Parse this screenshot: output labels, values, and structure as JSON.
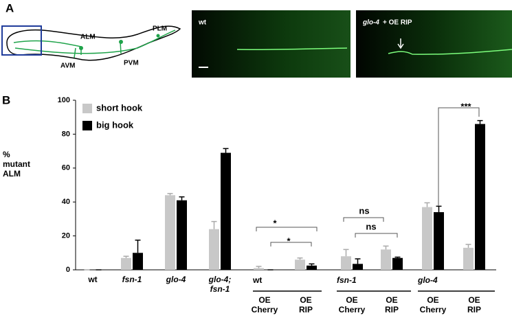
{
  "panel_a": {
    "label": "A",
    "neurons": [
      "ALM",
      "PLM",
      "AVM",
      "PVM"
    ],
    "image_1": "wt",
    "image_2_gene": "glo-4",
    "image_2_rest": "+ OE RIP"
  },
  "chart_data": {
    "type": "bar",
    "panel": "B",
    "ylabel": "% mutant ALM",
    "categories": [
      "wt",
      "fsn-1",
      "glo-4",
      "glo-4;\nfsn-1",
      "OE\nCherry",
      "OE\nRIP",
      "OE\nCherry",
      "OE\nRIP",
      "OE\nCherry",
      "OE\nRIP"
    ],
    "groups": [
      {
        "label": "wt",
        "categories": [
          4,
          5
        ]
      },
      {
        "label": "fsn-1",
        "categories": [
          6,
          7
        ]
      },
      {
        "label": "glo-4",
        "categories": [
          8,
          9
        ]
      }
    ],
    "series": [
      {
        "name": "short hook",
        "color": "#c8c8c8",
        "values": [
          0,
          7,
          44,
          24,
          1,
          6,
          8,
          12,
          37,
          13
        ],
        "errors": [
          0,
          1,
          1,
          4.5,
          1,
          1,
          4,
          2,
          2.5,
          2
        ]
      },
      {
        "name": "big hook",
        "color": "#000000",
        "values": [
          0,
          10,
          41,
          69,
          0,
          2.5,
          3.5,
          7,
          34,
          86
        ],
        "errors": [
          0,
          7.5,
          2,
          2.5,
          0,
          1,
          3,
          0.5,
          3.5,
          2
        ]
      }
    ],
    "annotations": [
      "*",
      "*",
      "ns",
      "ns",
      "***"
    ],
    "ylim": [
      0,
      100
    ],
    "yticks": [
      0,
      20,
      40,
      60,
      80,
      100
    ],
    "grid": false,
    "legend": "upper left"
  }
}
